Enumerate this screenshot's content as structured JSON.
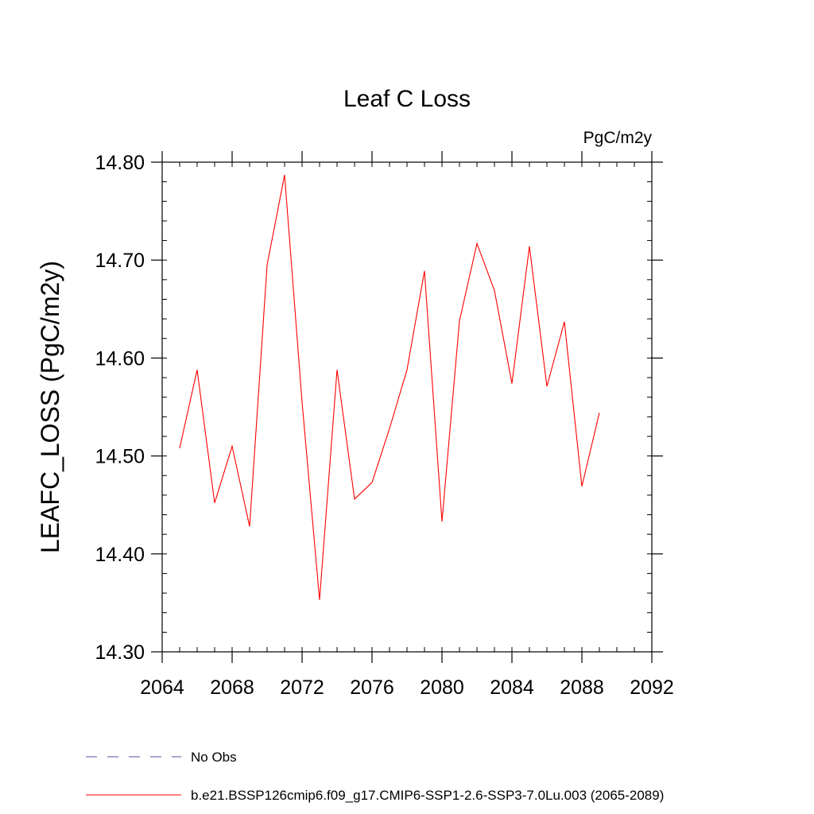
{
  "chart_data": {
    "type": "line",
    "title": "Leaf C Loss",
    "units": "PgC/m2y",
    "ylabel": "LEAFC_LOSS  (PgC/m2y)",
    "xlabel": "",
    "xlim": [
      2064,
      2092
    ],
    "ylim": [
      14.3,
      14.8
    ],
    "x_major_ticks": [
      2064,
      2068,
      2072,
      2076,
      2080,
      2084,
      2088,
      2092
    ],
    "x_tick_labels": [
      "2064",
      "2068",
      "2072",
      "2076",
      "2080",
      "2084",
      "2088",
      "2092"
    ],
    "x_minor_step": 1,
    "y_major_ticks": [
      14.3,
      14.4,
      14.5,
      14.6,
      14.7,
      14.8
    ],
    "y_tick_labels": [
      "14.30",
      "14.40",
      "14.50",
      "14.60",
      "14.70",
      "14.80"
    ],
    "y_minor_step": 0.02,
    "grid": false,
    "legend_position": "bottom",
    "series": [
      {
        "name": "b.e21.BSSP126cmip6.f09_g17.CMIP6-SSP1-2.6-SSP3-7.0Lu.003 (2065-2089)",
        "color": "#ff0000",
        "dash": "solid",
        "x": [
          2065,
          2066,
          2067,
          2068,
          2069,
          2070,
          2071,
          2072,
          2073,
          2074,
          2075,
          2076,
          2077,
          2078,
          2079,
          2080,
          2081,
          2082,
          2083,
          2084,
          2085,
          2086,
          2087,
          2088,
          2089
        ],
        "y": [
          14.508,
          14.588,
          14.452,
          14.51,
          14.428,
          14.695,
          14.787,
          14.555,
          14.353,
          14.588,
          14.456,
          14.473,
          14.528,
          14.588,
          14.689,
          14.433,
          14.638,
          14.717,
          14.669,
          14.574,
          14.714,
          14.571,
          14.637,
          14.469,
          14.544
        ]
      }
    ],
    "legend": [
      {
        "label": "No Obs",
        "color": "#5a4ea0",
        "dash": "dashed"
      },
      {
        "label": "b.e21.BSSP126cmip6.f09_g17.CMIP6-SSP1-2.6-SSP3-7.0Lu.003 (2065-2089)",
        "color": "#ff0000",
        "dash": "solid"
      }
    ]
  }
}
